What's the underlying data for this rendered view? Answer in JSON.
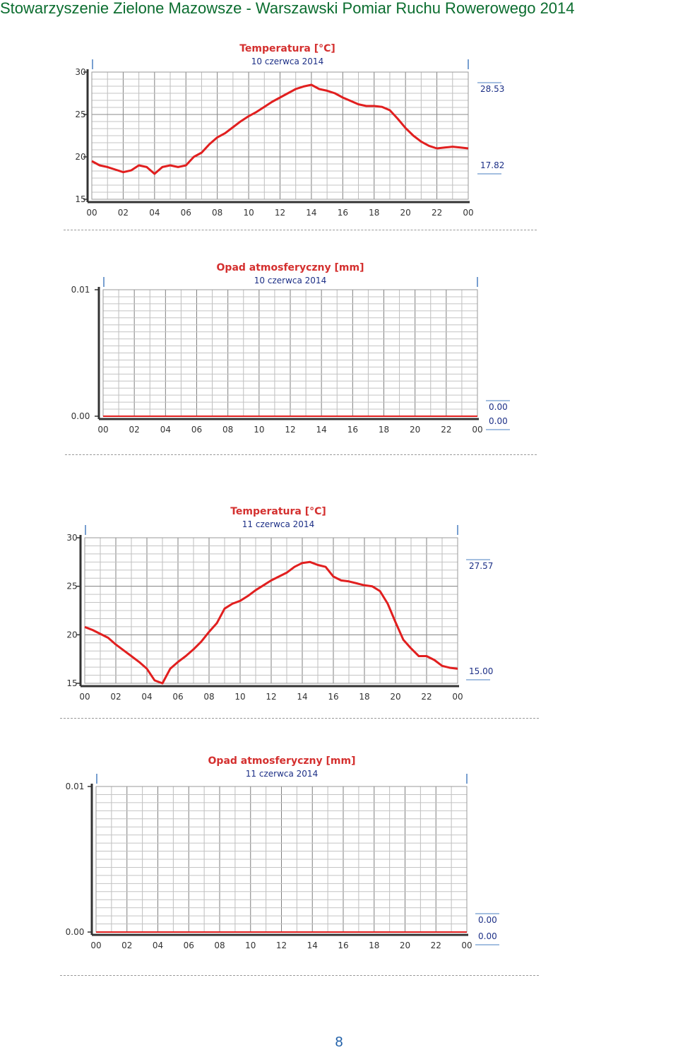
{
  "header": {
    "text": "Stowarzyszenie Zielone Mazowsze  -  Warszawski Pomiar Ruchu Rowerowego 2014"
  },
  "page_number": "8",
  "colors": {
    "header": "#0b6d2f",
    "series": "#e11f1f",
    "title": "#d4302f",
    "subtitle": "#1c2f86",
    "grid": "#a0a0a0"
  },
  "chart_data": [
    {
      "type": "line",
      "title": "Temperatura [°C]",
      "subtitle": "10 czerwca 2014",
      "xlim": [
        0,
        24
      ],
      "ylim": [
        15,
        30
      ],
      "xticks": [
        "00",
        "02",
        "04",
        "06",
        "08",
        "10",
        "12",
        "14",
        "16",
        "18",
        "20",
        "22",
        "00"
      ],
      "yticks": [
        "15",
        "20",
        "25",
        "30"
      ],
      "max_label": "28.53",
      "min_label": "17.82",
      "grid": true,
      "series": [
        {
          "x": [
            0,
            0.5,
            1,
            1.5,
            2,
            2.5,
            3,
            3.5,
            4,
            4.5,
            5,
            5.5,
            6,
            6.5,
            7,
            7.5,
            8,
            8.5,
            9,
            9.5,
            10,
            10.5,
            11,
            11.5,
            12,
            12.5,
            13,
            13.5,
            14,
            14.5,
            15,
            15.5,
            16,
            16.5,
            17,
            17.5,
            18,
            18.5,
            19,
            19.5,
            20,
            20.5,
            21,
            21.5,
            22,
            22.5,
            23,
            23.5,
            24
          ],
          "y": [
            19.5,
            19.0,
            18.8,
            18.5,
            18.2,
            18.4,
            19.0,
            18.8,
            18.0,
            18.8,
            19.0,
            18.8,
            19.0,
            20.0,
            20.5,
            21.5,
            22.3,
            22.8,
            23.5,
            24.2,
            24.8,
            25.3,
            25.9,
            26.5,
            27.0,
            27.5,
            28.0,
            28.3,
            28.5,
            28.0,
            27.8,
            27.5,
            27.0,
            26.6,
            26.2,
            26.0,
            26.0,
            25.9,
            25.5,
            24.5,
            23.4,
            22.5,
            21.8,
            21.3,
            21.0,
            21.1,
            21.2,
            21.1,
            21.0
          ]
        }
      ]
    },
    {
      "type": "line",
      "title": "Opad atmosferyczny [mm]",
      "subtitle": "10 czerwca 2014",
      "xlim": [
        0,
        24
      ],
      "ylim": [
        0,
        0.01
      ],
      "xticks": [
        "00",
        "02",
        "04",
        "06",
        "08",
        "10",
        "12",
        "14",
        "16",
        "18",
        "20",
        "22",
        "00"
      ],
      "yticks": [
        "0.00",
        "0.01"
      ],
      "max_label": "0.00",
      "min_label": "0.00",
      "grid": true,
      "series": [
        {
          "x": [
            0,
            24
          ],
          "y": [
            0,
            0
          ]
        }
      ]
    },
    {
      "type": "line",
      "title": "Temperatura [°C]",
      "subtitle": "11 czerwca 2014",
      "xlim": [
        0,
        24
      ],
      "ylim": [
        15,
        30
      ],
      "xticks": [
        "00",
        "02",
        "04",
        "06",
        "08",
        "10",
        "12",
        "14",
        "16",
        "18",
        "20",
        "22",
        "00"
      ],
      "yticks": [
        "15",
        "20",
        "25",
        "30"
      ],
      "max_label": "27.57",
      "min_label": "15.00",
      "grid": true,
      "series": [
        {
          "x": [
            0,
            0.5,
            1,
            1.5,
            2,
            2.5,
            3,
            3.5,
            4,
            4.5,
            5,
            5.5,
            6,
            6.5,
            7,
            7.5,
            8,
            8.5,
            9,
            9.5,
            10,
            10.5,
            11,
            11.5,
            12,
            12.5,
            13,
            13.5,
            14,
            14.5,
            15,
            15.5,
            16,
            16.5,
            17,
            17.5,
            18,
            18.5,
            19,
            19.5,
            20,
            20.5,
            21,
            21.5,
            22,
            22.5,
            23,
            23.5,
            24
          ],
          "y": [
            20.8,
            20.5,
            20.1,
            19.7,
            19.0,
            18.4,
            17.8,
            17.2,
            16.5,
            15.3,
            15.0,
            16.5,
            17.2,
            17.8,
            18.5,
            19.3,
            20.3,
            21.2,
            22.7,
            23.2,
            23.5,
            24.0,
            24.6,
            25.1,
            25.6,
            26.0,
            26.4,
            27.0,
            27.4,
            27.5,
            27.2,
            27.0,
            26.0,
            25.6,
            25.5,
            25.3,
            25.1,
            25.0,
            24.5,
            23.2,
            21.3,
            19.5,
            18.6,
            17.8,
            17.8,
            17.4,
            16.8,
            16.6,
            16.5
          ]
        }
      ]
    },
    {
      "type": "line",
      "title": "Opad atmosferyczny [mm]",
      "subtitle": "11 czerwca 2014",
      "xlim": [
        0,
        24
      ],
      "ylim": [
        0,
        0.01
      ],
      "xticks": [
        "00",
        "02",
        "04",
        "06",
        "08",
        "10",
        "12",
        "14",
        "16",
        "18",
        "20",
        "22",
        "00"
      ],
      "yticks": [
        "0.00",
        "0.01"
      ],
      "max_label": "0.00",
      "min_label": "0.00",
      "grid": true,
      "series": [
        {
          "x": [
            0,
            24
          ],
          "y": [
            0,
            0
          ]
        }
      ]
    }
  ]
}
